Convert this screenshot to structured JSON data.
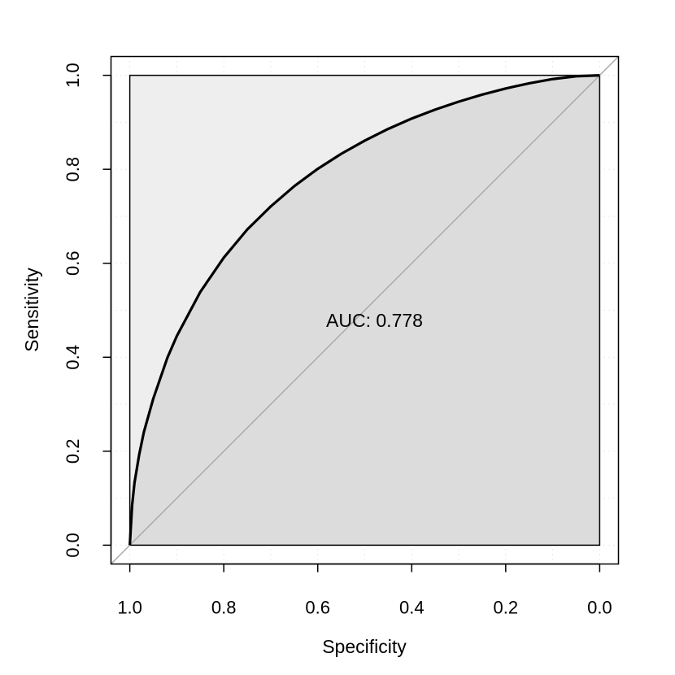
{
  "chart_data": {
    "type": "line",
    "title": "",
    "xlabel": "Specificity",
    "ylabel": "Sensitivity",
    "x_reversed": true,
    "xlim": [
      1.04,
      -0.04
    ],
    "ylim": [
      -0.04,
      1.04
    ],
    "xticks": [
      "1.0",
      "0.8",
      "0.6",
      "0.4",
      "0.2",
      "0.0"
    ],
    "yticks": [
      "0.0",
      "0.2",
      "0.4",
      "0.6",
      "0.8",
      "1.0"
    ],
    "grid": true,
    "series": [
      {
        "x": [
          1.0,
          0.995,
          0.99,
          0.98,
          0.97,
          0.95,
          0.92,
          0.9,
          0.85,
          0.8,
          0.75,
          0.7,
          0.65,
          0.6,
          0.55,
          0.5,
          0.45,
          0.4,
          0.35,
          0.3,
          0.25,
          0.2,
          0.15,
          0.1,
          0.05,
          0.0
        ],
        "y": [
          0.0,
          0.086,
          0.133,
          0.193,
          0.241,
          0.312,
          0.399,
          0.445,
          0.539,
          0.612,
          0.672,
          0.721,
          0.764,
          0.801,
          0.833,
          0.861,
          0.886,
          0.908,
          0.927,
          0.944,
          0.959,
          0.972,
          0.983,
          0.992,
          0.998,
          1.0
        ]
      }
    ],
    "reference_line": {
      "x": [
        1.04,
        -0.04
      ],
      "y": [
        -0.04,
        1.04
      ]
    },
    "annotation": {
      "text": "AUC: 0.778",
      "x": 0.5,
      "y": 0.478
    },
    "colors": {
      "curve": "#000000",
      "auc_fill": "#dcdcdc",
      "upper_fill": "#eeeeee",
      "diagonal": "#aaaaaa",
      "grid": "#d3d3d3"
    }
  }
}
